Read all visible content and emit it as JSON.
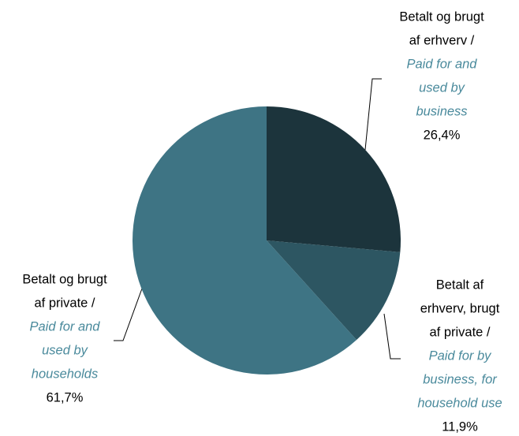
{
  "chart_data": {
    "type": "pie",
    "labels": [
      {
        "danish": [
          "Betalt og brugt",
          "af erhverv /"
        ],
        "english": [
          "Paid for and",
          "used by",
          "business"
        ]
      },
      {
        "danish": [
          "Betalt af",
          "erhverv, brugt",
          "af private /"
        ],
        "english": [
          "Paid for by",
          "business, for",
          "household use"
        ]
      },
      {
        "danish": [
          "Betalt og brugt",
          "af private /"
        ],
        "english": [
          "Paid for and",
          "used by",
          "households"
        ]
      }
    ],
    "values": [
      26.4,
      11.9,
      61.7
    ],
    "value_labels": [
      "26,4%",
      "11,9%",
      "61,7%"
    ],
    "colors": [
      "#1c343c",
      "#2d5662",
      "#3e7484"
    ],
    "english_color": "#4a8a9c"
  }
}
